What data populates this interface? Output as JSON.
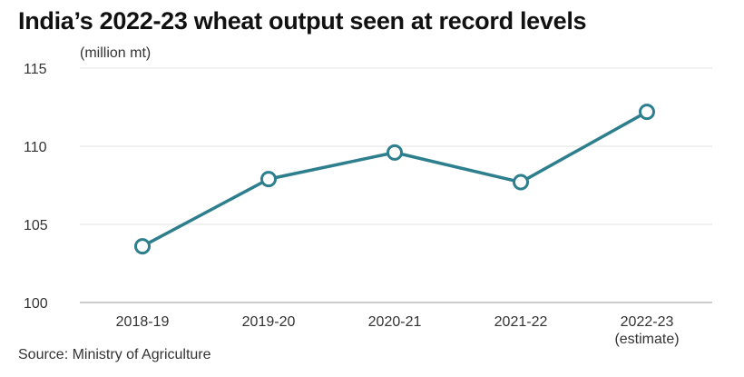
{
  "title": "India’s 2022-23 wheat output seen at record levels",
  "unit_label": "(million mt)",
  "source": "Source: Ministry of Agriculture",
  "chart_data": {
    "type": "line",
    "title": "India’s 2022-23 wheat output seen at record levels",
    "ylabel": "(million mt)",
    "xlabel": "",
    "categories": [
      "2018-19",
      "2019-20",
      "2020-21",
      "2021-22",
      "2022-23"
    ],
    "category_notes": [
      "",
      "",
      "",
      "",
      "(estimate)"
    ],
    "series": [
      {
        "values": [
          103.6,
          107.9,
          109.6,
          107.7,
          112.2
        ]
      }
    ],
    "ylim": [
      100,
      115
    ],
    "yticks": [
      100,
      105,
      110,
      115
    ],
    "grid": true,
    "line_color": "#2e7f8e",
    "marker_fill": "#ffffff"
  }
}
